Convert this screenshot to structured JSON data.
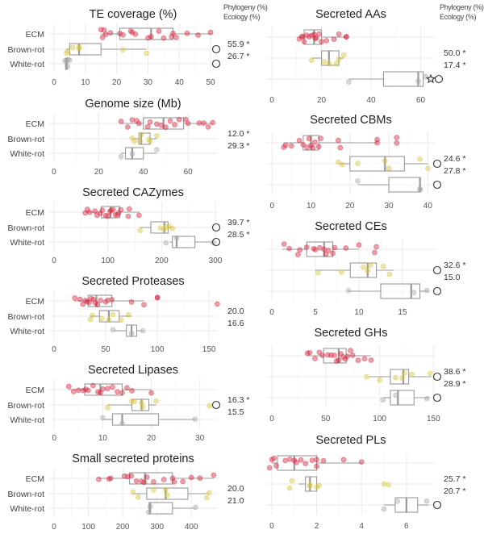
{
  "header": {
    "left": [
      "Phylogeny (%)",
      "Ecology (%)"
    ],
    "right": [
      "Phylogeny (%)",
      "Ecology (%)"
    ]
  },
  "colors": {
    "ECM": "#d7263d",
    "Brown-rot": "#d8c63a",
    "White-rot": "#a9a9a9"
  },
  "chart_data": [
    {
      "type": "boxplot",
      "title": "TE coverage (%)",
      "column": "left",
      "xlim": [
        -1.8,
        52.3
      ],
      "ticks": [
        0,
        10,
        20,
        30,
        40,
        50
      ],
      "groups": [
        {
          "name": "ECM",
          "box": [
            15,
            21,
            31,
            38,
            50
          ],
          "points": [
            15,
            15.5,
            16,
            16.5,
            18,
            21,
            22,
            24.5,
            25,
            26,
            30,
            31,
            33.5,
            35,
            37.5,
            38,
            39,
            42.5,
            46,
            50
          ]
        },
        {
          "name": "Brown-rot",
          "box": [
            4,
            5,
            8,
            15,
            29.5
          ],
          "points": [
            4,
            4.3,
            6,
            8,
            8,
            22,
            29.5
          ]
        },
        {
          "name": "White-rot",
          "box": [
            3.5,
            3.7,
            4,
            4.2,
            4.5
          ],
          "points": [
            3.5,
            4,
            4.3,
            4.5,
            5
          ]
        }
      ],
      "stats": [
        "55.9 *",
        "26.7 *"
      ],
      "markers": {
        "Brown-rot": "circle",
        "White-rot": "circle"
      }
    },
    {
      "type": "boxplot",
      "title": "Genome size (Mb)",
      "column": "left",
      "xlim": [
        -2.5,
        73.3
      ],
      "ticks": [
        0,
        20,
        40,
        60
      ],
      "groups": [
        {
          "name": "ECM",
          "box": [
            30,
            40,
            49,
            58,
            71
          ],
          "points": [
            30,
            33,
            35,
            37,
            38,
            42,
            43,
            46,
            48,
            50,
            52,
            54,
            56,
            59,
            60,
            65,
            67,
            69,
            71
          ]
        },
        {
          "name": "Brown-rot",
          "box": [
            35,
            38,
            39,
            43,
            46
          ],
          "points": [
            35,
            36,
            38.5,
            39,
            42.5,
            43,
            46
          ]
        },
        {
          "name": "White-rot",
          "box": [
            30,
            32,
            35,
            40,
            46
          ],
          "points": [
            30,
            35,
            46
          ]
        }
      ],
      "stats": [
        "12.0 *",
        "29.3 *"
      ],
      "markers": {}
    },
    {
      "type": "boxplot",
      "title": "Secreted CAZymes",
      "column": "left",
      "xlim": [
        -10.5,
        304.5
      ],
      "ticks": [
        0,
        100,
        200,
        300
      ],
      "groups": [
        {
          "name": "ECM",
          "box": [
            58,
            88,
            105,
            122,
            158
          ],
          "points": [
            58,
            62,
            66,
            76,
            80,
            86,
            90,
            96,
            100,
            104,
            106,
            110,
            114,
            118,
            120,
            124,
            138,
            140,
            158
          ]
        },
        {
          "name": "Brown-rot",
          "box": [
            160,
            180,
            205,
            212,
            220
          ],
          "points": [
            160,
            198,
            205,
            208,
            214,
            220
          ]
        },
        {
          "name": "White-rot",
          "box": [
            215,
            220,
            228,
            262,
            296
          ],
          "points": [
            208,
            228,
            296
          ]
        }
      ],
      "stats": [
        "39.7 *",
        "28.5 *"
      ],
      "markers": {
        "Brown-rot": "circle",
        "White-rot": "circle"
      }
    },
    {
      "type": "boxplot",
      "title": "Secreted Proteases",
      "column": "left",
      "xlim": [
        -5.5,
        158.5
      ],
      "ticks": [
        0,
        50,
        100,
        150
      ],
      "groups": [
        {
          "name": "ECM",
          "box": [
            20,
            33,
            41,
            56,
            87
          ],
          "points": [
            20,
            25,
            28,
            30,
            32,
            34,
            36,
            38,
            40,
            42,
            45,
            50,
            52,
            56,
            75,
            87,
            100,
            100,
            158
          ]
        },
        {
          "name": "Brown-rot",
          "box": [
            35,
            44,
            53,
            63,
            75
          ],
          "points": [
            35,
            37,
            46,
            53,
            57,
            65,
            72
          ]
        },
        {
          "name": "White-rot",
          "box": [
            58,
            70,
            75,
            80,
            86
          ],
          "points": [
            57,
            75,
            86
          ]
        }
      ],
      "stats": [
        "20.0",
        "16.6"
      ],
      "markers": {}
    },
    {
      "type": "boxplot",
      "title": "Secreted Lipases",
      "column": "left",
      "xlim": [
        -1.2,
        33.7
      ],
      "ticks": [
        0,
        10,
        20,
        30
      ],
      "groups": [
        {
          "name": "ECM",
          "box": [
            3,
            6.3,
            9.5,
            14,
            20
          ],
          "points": [
            3,
            4,
            5,
            6,
            6.5,
            7,
            8,
            9,
            9.5,
            10,
            11,
            12,
            13,
            14,
            15,
            16,
            20
          ]
        },
        {
          "name": "Brown-rot",
          "box": [
            11,
            16,
            18,
            19.5,
            21
          ],
          "points": [
            11,
            16,
            16.5,
            18,
            18.2,
            21,
            32
          ]
        },
        {
          "name": "White-rot",
          "box": [
            10,
            12,
            14,
            21.5,
            29
          ],
          "points": [
            10,
            14,
            29
          ]
        }
      ],
      "stats": [
        "16.3 *",
        "15.5"
      ],
      "markers": {
        "Brown-rot": "circle"
      }
    },
    {
      "type": "boxplot",
      "title": "Small secreted proteins",
      "column": "left",
      "xlim": [
        -16.5,
        477
      ],
      "ticks": [
        0,
        100,
        200,
        300,
        400
      ],
      "groups": [
        {
          "name": "ECM",
          "box": [
            130,
            220,
            265,
            345,
            465
          ],
          "points": [
            130,
            160,
            165,
            205,
            215,
            225,
            240,
            255,
            262,
            270,
            290,
            320,
            345,
            350,
            375,
            400,
            425,
            465
          ]
        },
        {
          "name": "Brown-rot",
          "box": [
            230,
            270,
            325,
            390,
            450
          ],
          "points": [
            230,
            245,
            290,
            325,
            330,
            445,
            452
          ]
        },
        {
          "name": "White-rot",
          "box": [
            275,
            277,
            280,
            345,
            412
          ],
          "points": [
            275,
            280,
            412
          ]
        }
      ],
      "stats": [
        "20.0",
        "21.0"
      ],
      "markers": {}
    },
    {
      "type": "boxplot",
      "title": "Secreted AAs",
      "column": "right",
      "xlim": [
        -2.3,
        66
      ],
      "ticks": [
        0,
        20,
        40,
        60
      ],
      "groups": [
        {
          "name": "ECM",
          "box": [
            12,
            13,
            17,
            20,
            30
          ],
          "points": [
            11,
            12,
            12.5,
            13,
            14,
            15,
            16,
            17,
            17.5,
            18,
            19,
            20,
            22,
            25,
            27,
            30,
            30
          ]
        },
        {
          "name": "Brown-rot",
          "box": [
            16,
            20,
            23,
            27,
            29
          ],
          "points": [
            16,
            21,
            23,
            26,
            27,
            29
          ]
        },
        {
          "name": "White-rot",
          "box": [
            31,
            45,
            59,
            61,
            61
          ],
          "points": [
            31,
            59,
            62
          ]
        }
      ],
      "stats": [
        "50.0 *",
        "17.4 *"
      ],
      "markers": {
        "White-rot": "star+circle"
      }
    },
    {
      "type": "boxplot",
      "title": "Secreted CBMs",
      "column": "right",
      "xlim": [
        -1.5,
        42
      ],
      "ticks": [
        0,
        10,
        20,
        30,
        40
      ],
      "groups": [
        {
          "name": "ECM",
          "box": [
            3,
            8,
            10,
            12,
            27
          ],
          "points": [
            3,
            3.5,
            5,
            7,
            8,
            9,
            9.5,
            10,
            10.5,
            11,
            12,
            12.5,
            17,
            17.5,
            27,
            27,
            32,
            32
          ]
        },
        {
          "name": "Brown-rot",
          "box": [
            17,
            20,
            29,
            34,
            40
          ],
          "points": [
            17,
            18,
            22,
            29,
            30,
            38,
            40
          ]
        },
        {
          "name": "White-rot",
          "box": [
            22,
            30,
            38,
            38,
            38
          ],
          "points": [
            22,
            38,
            38
          ]
        }
      ],
      "stats": [
        "24.6 *",
        "27.8 *"
      ],
      "markers": {
        "Brown-rot": "circle",
        "White-rot": "circle"
      }
    },
    {
      "type": "boxplot",
      "title": "Secreted CEs",
      "column": "right",
      "xlim": [
        -0.65,
        18.8
      ],
      "ticks": [
        0,
        5,
        10,
        15
      ],
      "groups": [
        {
          "name": "ECM",
          "box": [
            1.2,
            4,
            6,
            7,
            10
          ],
          "points": [
            1.4,
            2,
            3,
            3.2,
            4,
            4.8,
            5,
            5.5,
            6,
            6.2,
            6.5,
            7,
            7.2,
            8.5,
            10,
            11.8,
            12
          ]
        },
        {
          "name": "Brown-rot",
          "box": [
            5,
            9,
            11,
            12,
            14
          ],
          "points": [
            5.3,
            8,
            10.5,
            11,
            11.3,
            12.8,
            13.5
          ]
        },
        {
          "name": "White-rot",
          "box": [
            8.8,
            12.5,
            16,
            17,
            18
          ],
          "points": [
            8.8,
            16.3,
            17.8
          ]
        }
      ],
      "stats": [
        "32.6 *",
        "15.0"
      ],
      "markers": {
        "Brown-rot": "circle",
        "White-rot": "circle"
      }
    },
    {
      "type": "boxplot",
      "title": "Secreted GHs",
      "column": "right",
      "xlim": [
        -5.3,
        152
      ],
      "ticks": [
        0,
        50,
        100,
        150
      ],
      "groups": [
        {
          "name": "ECM",
          "box": [
            33,
            48,
            62,
            69,
            92
          ],
          "points": [
            33,
            35,
            40,
            44,
            47,
            52,
            55,
            58,
            60,
            62,
            64,
            66,
            68,
            70,
            73,
            75,
            80,
            86,
            92
          ]
        },
        {
          "name": "Brown-rot",
          "box": [
            90,
            110,
            122,
            127,
            148
          ],
          "points": [
            88,
            100,
            115,
            121,
            123,
            130,
            147
          ]
        },
        {
          "name": "White-rot",
          "box": [
            104,
            110,
            117,
            132,
            146
          ],
          "points": [
            103,
            115,
            144
          ]
        }
      ],
      "stats": [
        "38.6 *",
        "28.9 *"
      ],
      "markers": {
        "Brown-rot": "circle",
        "White-rot": "circle"
      }
    },
    {
      "type": "boxplot",
      "title": "Secreted PLs",
      "column": "right",
      "xlim": [
        -0.25,
        7.3
      ],
      "ticks": [
        0,
        2,
        4,
        6
      ],
      "groups": [
        {
          "name": "ECM",
          "box": [
            0,
            0.25,
            1,
            2,
            4
          ],
          "points": [
            -0.1,
            0,
            0.1,
            0.2,
            0.6,
            0.8,
            1,
            1.1,
            1.3,
            1.5,
            1.8,
            2,
            2,
            2.3,
            3.2,
            4
          ]
        },
        {
          "name": "Brown-rot",
          "box": [
            1.2,
            1.5,
            1.7,
            2,
            2
          ],
          "points": [
            0.8,
            0.9,
            1.7,
            1.7,
            2,
            2.1,
            5,
            5.2
          ]
        },
        {
          "name": "White-rot",
          "box": [
            5,
            5.5,
            6,
            6.5,
            7
          ],
          "points": [
            5,
            5.6,
            6.9
          ]
        }
      ],
      "stats": [
        "25.7 *",
        "20.7 *"
      ],
      "markers": {
        "White-rot": "circle"
      }
    }
  ]
}
